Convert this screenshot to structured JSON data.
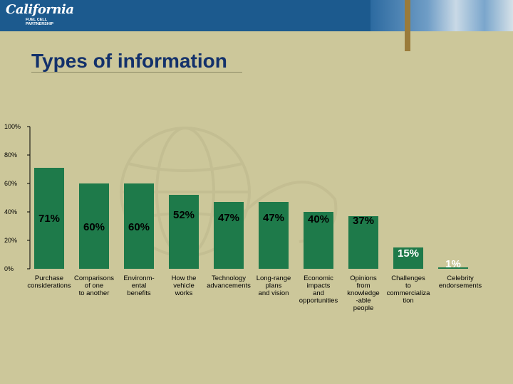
{
  "brand": {
    "logo_line1": "California",
    "logo_line2": [
      "FUEL CELL",
      "PARTNERSHIP"
    ]
  },
  "slide": {
    "title": "Types of information"
  },
  "colors": {
    "background": "#ccc79a",
    "bar": "#1e7a4a",
    "banner": "#1c5a8e",
    "title": "#13316b"
  },
  "chart_data": {
    "type": "bar",
    "title": "",
    "xlabel": "",
    "ylabel": "",
    "ylim": [
      0,
      100
    ],
    "yticks": [
      0,
      20,
      40,
      60,
      80,
      100
    ],
    "ytick_labels": [
      "0%",
      "20%",
      "40%",
      "60%",
      "80%",
      "100%"
    ],
    "grid": false,
    "categories": [
      [
        "Purchase",
        "considerations"
      ],
      [
        "Comparisons",
        "of one",
        "to another"
      ],
      [
        "Environm-",
        "ental",
        "benefits"
      ],
      [
        "How the",
        "vehicle",
        "works"
      ],
      [
        "Technology",
        "advancements"
      ],
      [
        "Long-range",
        "plans",
        "and vision"
      ],
      [
        "Economic",
        "impacts",
        "and",
        "opportunities"
      ],
      [
        "Opinions",
        "from",
        "knowledge",
        "-able",
        "people"
      ],
      [
        "Challenges",
        "to",
        "commercializa",
        "tion"
      ],
      [
        "Celebrity",
        "endorsements"
      ]
    ],
    "values": [
      71,
      60,
      60,
      52,
      47,
      47,
      40,
      37,
      15,
      1
    ],
    "data_labels": [
      "71%",
      "60%",
      "60%",
      "52%",
      "47%",
      "47%",
      "40%",
      "37%",
      "15%",
      "1%"
    ]
  }
}
